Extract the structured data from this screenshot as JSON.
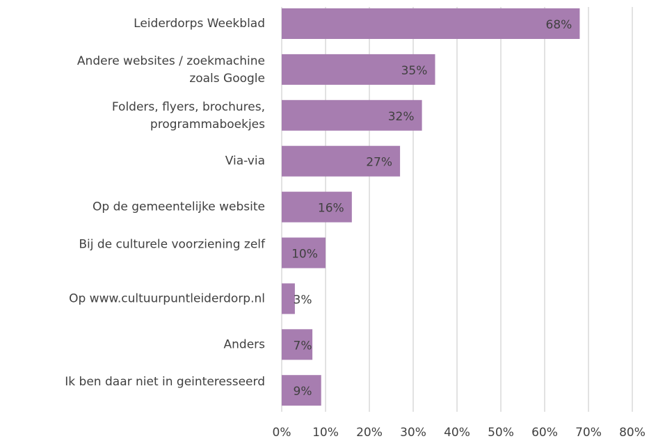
{
  "chart_data": {
    "type": "bar",
    "orientation": "horizontal",
    "categories": [
      "Leiderdorps Weekblad",
      "Andere websites / zoekmachine zoals Google",
      "Folders, flyers, brochures, programmaboekjes",
      "Via-via",
      "Op de gemeentelijke website",
      "Bij de culturele voorziening zelf",
      "Op www.cultuurpuntleiderdorp.nl",
      "Anders",
      "Ik ben daar niet in geinteresseerd"
    ],
    "values": [
      68,
      35,
      32,
      27,
      16,
      10,
      3,
      7,
      9
    ],
    "value_labels": [
      "68%",
      "35%",
      "32%",
      "27%",
      "16%",
      "10%",
      "3%",
      "7%",
      "9%"
    ],
    "color": "#a77db0",
    "xlim": [
      0,
      80
    ],
    "xticks": [
      {
        "value": 0,
        "label": "0%"
      },
      {
        "value": 10,
        "label": "10%"
      },
      {
        "value": 20,
        "label": "20%"
      },
      {
        "value": 30,
        "label": "30%"
      },
      {
        "value": 40,
        "label": "40%"
      },
      {
        "value": 50,
        "label": "50%"
      },
      {
        "value": 60,
        "label": "60%"
      },
      {
        "value": 70,
        "label": "70%"
      },
      {
        "value": 80,
        "label": "80%"
      }
    ],
    "grid": true
  }
}
